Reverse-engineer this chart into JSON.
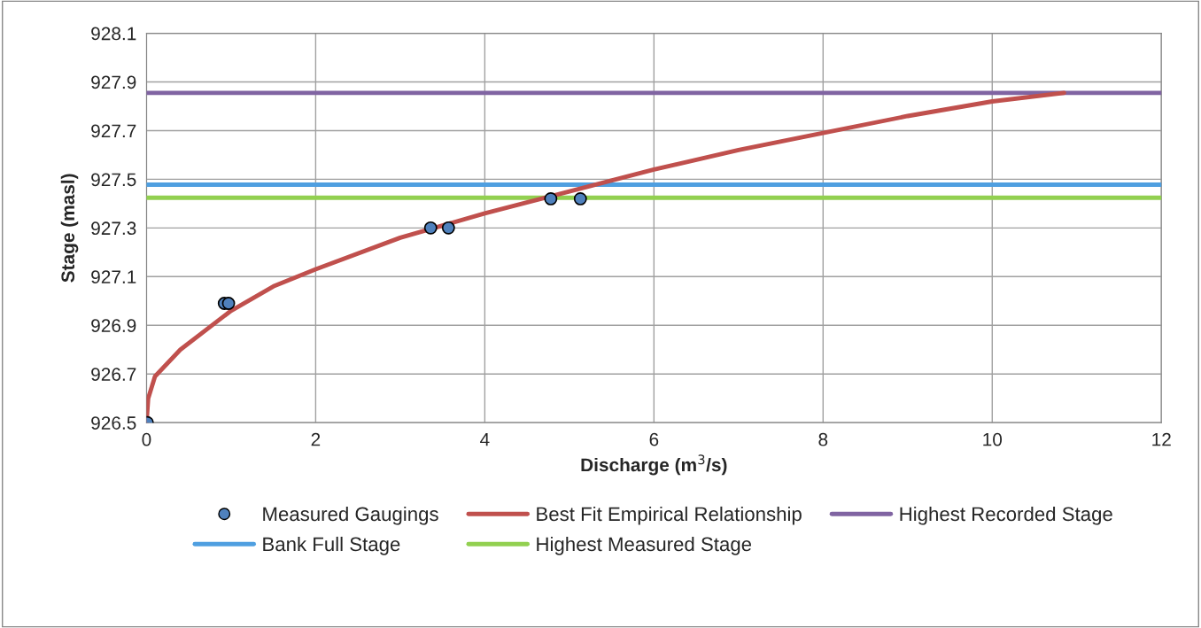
{
  "chart_data": {
    "type": "scatter",
    "xlabel": "Discharge (m$^{3}$/s)",
    "ylabel": "Stage (masl)",
    "series": [
      {
        "name": "Measured Gaugings",
        "color": "#4f81bd",
        "marker": "circle",
        "x": [
          0.01,
          0.92,
          0.97,
          3.36,
          3.57,
          4.78,
          5.13
        ],
        "values": [
          926.5,
          926.99,
          926.99,
          927.3,
          927.3,
          927.42,
          927.42
        ]
      },
      {
        "name": "Best Fit Empirical Relationship",
        "type": "line",
        "color": "#c0504d",
        "marker": "none",
        "x": [
          0,
          0.02,
          0.1,
          0.4,
          1,
          1.5,
          2,
          3,
          4,
          5,
          6,
          7,
          8,
          9,
          10,
          10.85
        ],
        "values": [
          926.5,
          926.6,
          926.69,
          926.8,
          926.96,
          927.06,
          927.13,
          927.26,
          927.36,
          927.45,
          927.54,
          927.62,
          927.69,
          927.76,
          927.82,
          927.855
        ]
      }
    ],
    "ref_lines": [
      {
        "axis": "y",
        "value": 927.855,
        "label": "Highest Recorded Stage",
        "color": "#8064a2"
      },
      {
        "axis": "y",
        "value": 927.478,
        "label": "Bank Full Stage",
        "color": "#4f9fe0"
      },
      {
        "axis": "y",
        "value": 927.424,
        "label": "Highest Measured Stage",
        "color": "#92d050"
      }
    ],
    "xlim": [
      0,
      12
    ],
    "xticks": [
      0,
      2,
      4,
      6,
      8,
      10,
      12
    ],
    "ylim": [
      926.5,
      928.1
    ],
    "yticks": [
      {
        "value": 926.5,
        "label": "926.5"
      },
      {
        "value": 926.7,
        "label": "926.7"
      },
      {
        "value": 926.9,
        "label": "926.9"
      },
      {
        "value": 927.1,
        "label": "927.1"
      },
      {
        "value": 927.3,
        "label": "927.3"
      },
      {
        "value": 927.5,
        "label": "927.5"
      },
      {
        "value": 927.7,
        "label": "927.7"
      },
      {
        "value": 927.9,
        "label": "927.9"
      },
      {
        "value": 928.1,
        "label": "928.1"
      }
    ],
    "grid": true,
    "legend": "bottom"
  }
}
